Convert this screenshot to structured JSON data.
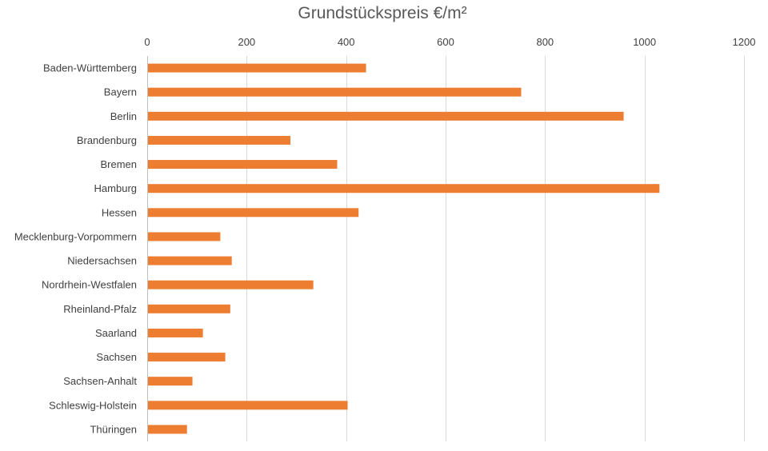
{
  "chart_data": {
    "type": "bar",
    "orientation": "horizontal",
    "title": "Grundstückspreis €/m²",
    "xlabel": "",
    "ylabel": "",
    "xlim": [
      0,
      1200
    ],
    "x_ticks": [
      "0",
      "200",
      "400",
      "600",
      "800",
      "1000",
      "1200"
    ],
    "x_axis_position": "top",
    "grid": true,
    "legend": "none",
    "bar_color": "#ED7D31",
    "categories": [
      "Baden-Württemberg",
      "Bayern",
      "Berlin",
      "Brandenburg",
      "Bremen",
      "Hamburg",
      "Hessen",
      "Mecklenburg-Vorpommern",
      "Niedersachsen",
      "Nordrhein-Westfalen",
      "Rheinland-Pfalz",
      "Saarland",
      "Sachsen",
      "Sachsen-Anhalt",
      "Schleswig-Holstein",
      "Thüringen"
    ],
    "values": [
      440,
      752,
      958,
      288,
      382,
      1030,
      425,
      147,
      170,
      334,
      167,
      112,
      157,
      91,
      403,
      80
    ]
  }
}
